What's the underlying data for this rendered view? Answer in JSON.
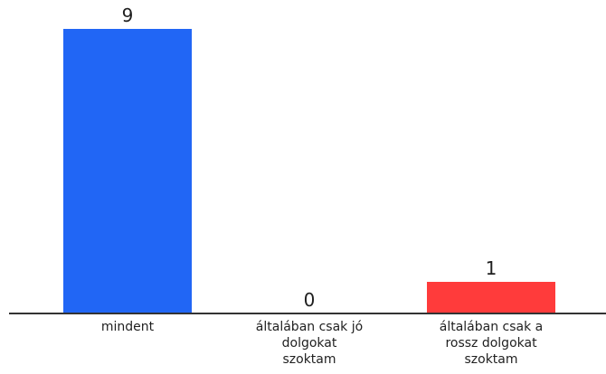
{
  "chart_data": {
    "type": "bar",
    "categories": [
      [
        "mindent"
      ],
      [
        "általában csak jó",
        "dolgokat",
        "szoktam"
      ],
      [
        "általában csak a",
        "rossz dolgokat",
        "szoktam"
      ]
    ],
    "values": [
      9,
      0,
      1
    ],
    "colors": [
      "#2166f5",
      "#2166f5",
      "#ff3b3b"
    ],
    "axis_color": "#333333",
    "ylim": [
      0,
      9
    ]
  }
}
